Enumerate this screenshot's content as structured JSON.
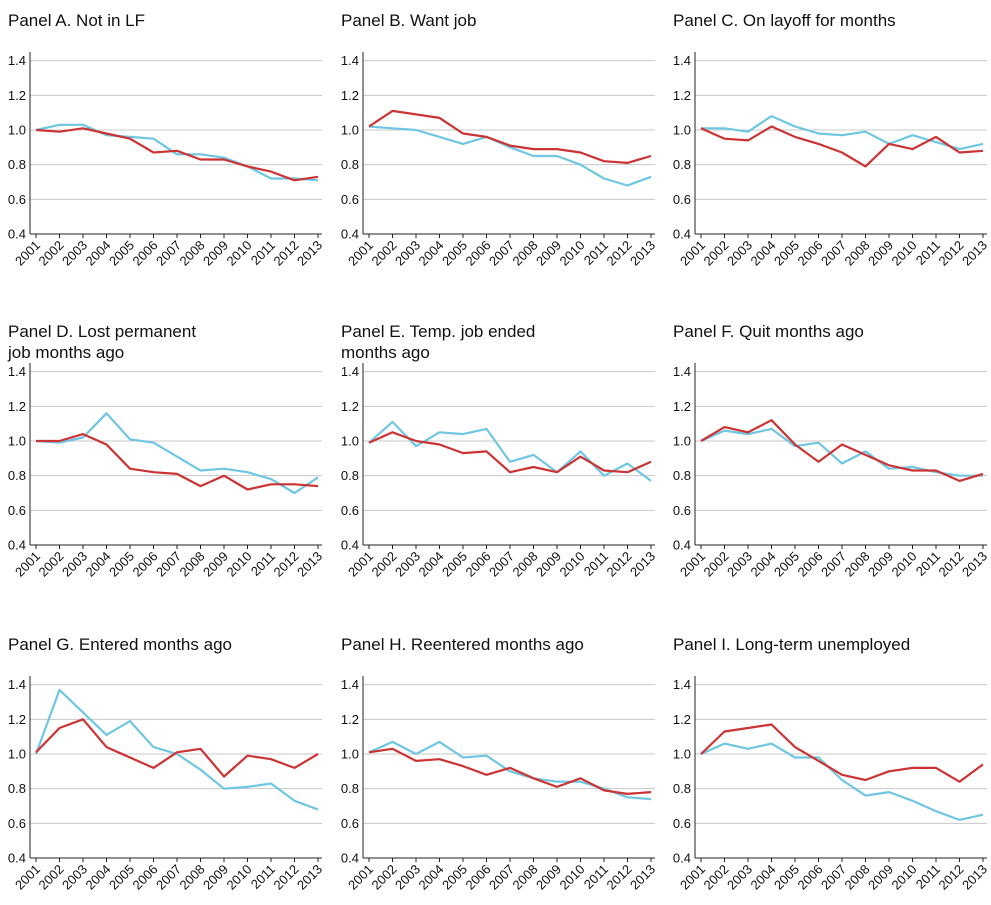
{
  "chart_data": [
    {
      "type": "line",
      "title": [
        "Panel A. Not in LF"
      ],
      "categories": [
        "2001",
        "2002",
        "2003",
        "2004",
        "2005",
        "2006",
        "2007",
        "2008",
        "2009",
        "2010",
        "2011",
        "2012",
        "2013"
      ],
      "ylim": [
        0.4,
        1.45
      ],
      "yticks": [
        0.4,
        0.6,
        0.8,
        {
          "value": 1,
          "label": "1.0"
        },
        1.2,
        1.4
      ],
      "grid": true,
      "series": [
        {
          "color": "#6fc6e2",
          "values": [
            1.0,
            1.03,
            1.03,
            0.97,
            0.96,
            0.95,
            0.86,
            0.86,
            0.84,
            0.79,
            0.72,
            0.72,
            0.71
          ]
        },
        {
          "color": "#cc3333",
          "values": [
            1.0,
            0.99,
            1.01,
            0.98,
            0.95,
            0.87,
            0.88,
            0.83,
            0.83,
            0.79,
            0.76,
            0.71,
            0.73
          ]
        }
      ]
    },
    {
      "type": "line",
      "title": [
        "Panel B. Want job"
      ],
      "categories": [
        "2001",
        "2002",
        "2003",
        "2004",
        "2005",
        "2006",
        "2007",
        "2008",
        "2009",
        "2010",
        "2011",
        "2012",
        "2013"
      ],
      "ylim": [
        0.4,
        1.45
      ],
      "yticks": [
        0.4,
        0.6,
        0.8,
        {
          "value": 1,
          "label": "1.0"
        },
        1.2,
        1.4
      ],
      "grid": true,
      "series": [
        {
          "color": "#6fc6e2",
          "values": [
            1.02,
            1.01,
            1.0,
            0.96,
            0.92,
            0.96,
            0.9,
            0.85,
            0.85,
            0.8,
            0.72,
            0.68,
            0.73
          ]
        },
        {
          "color": "#cc3333",
          "values": [
            1.02,
            1.11,
            1.09,
            1.07,
            0.98,
            0.96,
            0.91,
            0.89,
            0.89,
            0.87,
            0.82,
            0.81,
            0.85
          ]
        }
      ]
    },
    {
      "type": "line",
      "title": [
        "Panel C. On layoff for months"
      ],
      "categories": [
        "2001",
        "2002",
        "2003",
        "2004",
        "2005",
        "2006",
        "2007",
        "2008",
        "2009",
        "2010",
        "2011",
        "2012",
        "2013"
      ],
      "ylim": [
        0.4,
        1.45
      ],
      "yticks": [
        0.4,
        0.6,
        0.8,
        {
          "value": 1,
          "label": "1.0"
        },
        1.2,
        1.4
      ],
      "grid": true,
      "series": [
        {
          "color": "#6fc6e2",
          "values": [
            1.01,
            1.01,
            0.99,
            1.08,
            1.02,
            0.98,
            0.97,
            0.99,
            0.92,
            0.97,
            0.93,
            0.89,
            0.92
          ]
        },
        {
          "color": "#cc3333",
          "values": [
            1.01,
            0.95,
            0.94,
            1.02,
            0.96,
            0.92,
            0.87,
            0.79,
            0.92,
            0.89,
            0.96,
            0.87,
            0.88
          ]
        }
      ]
    },
    {
      "type": "line",
      "title": [
        "Panel D. Lost permanent",
        "job months ago"
      ],
      "categories": [
        "2001",
        "2002",
        "2003",
        "2004",
        "2005",
        "2006",
        "2007",
        "2008",
        "2009",
        "2010",
        "2011",
        "2012",
        "2013"
      ],
      "ylim": [
        0.4,
        1.45
      ],
      "yticks": [
        0.4,
        0.6,
        0.8,
        {
          "value": 1,
          "label": "1.0"
        },
        1.2,
        1.4
      ],
      "grid": true,
      "series": [
        {
          "color": "#6fc6e2",
          "values": [
            1.0,
            0.99,
            1.02,
            1.16,
            1.01,
            0.99,
            0.91,
            0.83,
            0.84,
            0.82,
            0.78,
            0.7,
            0.79
          ]
        },
        {
          "color": "#cc3333",
          "values": [
            1.0,
            1.0,
            1.04,
            0.98,
            0.84,
            0.82,
            0.81,
            0.74,
            0.8,
            0.72,
            0.75,
            0.75,
            0.74
          ]
        }
      ]
    },
    {
      "type": "line",
      "title": [
        "Panel E. Temp. job ended",
        "months ago"
      ],
      "categories": [
        "2001",
        "2002",
        "2003",
        "2004",
        "2005",
        "2006",
        "2007",
        "2008",
        "2009",
        "2010",
        "2011",
        "2012",
        "2013"
      ],
      "ylim": [
        0.4,
        1.45
      ],
      "yticks": [
        0.4,
        0.6,
        0.8,
        {
          "value": 1,
          "label": "1.0"
        },
        1.2,
        1.4
      ],
      "grid": true,
      "series": [
        {
          "color": "#6fc6e2",
          "values": [
            0.99,
            1.11,
            0.97,
            1.05,
            1.04,
            1.07,
            0.88,
            0.92,
            0.82,
            0.94,
            0.8,
            0.87,
            0.77
          ]
        },
        {
          "color": "#cc3333",
          "values": [
            0.99,
            1.05,
            1.0,
            0.98,
            0.93,
            0.94,
            0.82,
            0.85,
            0.82,
            0.91,
            0.83,
            0.82,
            0.88
          ]
        }
      ]
    },
    {
      "type": "line",
      "title": [
        "Panel F. Quit months ago"
      ],
      "categories": [
        "2001",
        "2002",
        "2003",
        "2004",
        "2005",
        "2006",
        "2007",
        "2008",
        "2009",
        "2010",
        "2011",
        "2012",
        "2013"
      ],
      "ylim": [
        0.4,
        1.45
      ],
      "yticks": [
        0.4,
        0.6,
        0.8,
        {
          "value": 1,
          "label": "1.0"
        },
        1.2,
        1.4
      ],
      "grid": true,
      "series": [
        {
          "color": "#6fc6e2",
          "values": [
            1.0,
            1.06,
            1.04,
            1.07,
            0.97,
            0.99,
            0.87,
            0.94,
            0.84,
            0.85,
            0.82,
            0.8,
            0.8
          ]
        },
        {
          "color": "#cc3333",
          "values": [
            1.0,
            1.08,
            1.05,
            1.12,
            0.98,
            0.88,
            0.98,
            0.92,
            0.86,
            0.83,
            0.83,
            0.77,
            0.81
          ]
        }
      ]
    },
    {
      "type": "line",
      "title": [
        "Panel G. Entered months ago"
      ],
      "categories": [
        "2001",
        "2002",
        "2003",
        "2004",
        "2005",
        "2006",
        "2007",
        "2008",
        "2009",
        "2010",
        "2011",
        "2012",
        "2013"
      ],
      "ylim": [
        0.4,
        1.45
      ],
      "yticks": [
        0.4,
        0.6,
        0.8,
        {
          "value": 1,
          "label": "1.0"
        },
        1.2,
        1.4
      ],
      "grid": true,
      "series": [
        {
          "color": "#6fc6e2",
          "values": [
            1.0,
            1.37,
            1.24,
            1.11,
            1.19,
            1.04,
            1.0,
            0.91,
            0.8,
            0.81,
            0.83,
            0.73,
            0.68
          ]
        },
        {
          "color": "#cc3333",
          "values": [
            1.01,
            1.15,
            1.2,
            1.04,
            0.98,
            0.92,
            1.01,
            1.03,
            0.87,
            0.99,
            0.97,
            0.92,
            1.0
          ]
        }
      ]
    },
    {
      "type": "line",
      "title": [
        "Panel H. Reentered months ago"
      ],
      "categories": [
        "2001",
        "2002",
        "2003",
        "2004",
        "2005",
        "2006",
        "2007",
        "2008",
        "2009",
        "2010",
        "2011",
        "2012",
        "2013"
      ],
      "ylim": [
        0.4,
        1.45
      ],
      "yticks": [
        0.4,
        0.6,
        0.8,
        {
          "value": 1,
          "label": "1.0"
        },
        1.2,
        1.4
      ],
      "grid": true,
      "series": [
        {
          "color": "#6fc6e2",
          "values": [
            1.01,
            1.07,
            1.0,
            1.07,
            0.98,
            0.99,
            0.9,
            0.86,
            0.84,
            0.84,
            0.8,
            0.75,
            0.74
          ]
        },
        {
          "color": "#cc3333",
          "values": [
            1.01,
            1.03,
            0.96,
            0.97,
            0.93,
            0.88,
            0.92,
            0.86,
            0.81,
            0.86,
            0.79,
            0.77,
            0.78
          ]
        }
      ]
    },
    {
      "type": "line",
      "title": [
        "Panel I. Long-term unemployed"
      ],
      "categories": [
        "2001",
        "2002",
        "2003",
        "2004",
        "2005",
        "2006",
        "2007",
        "2008",
        "2009",
        "2010",
        "2011",
        "2012",
        "2013"
      ],
      "ylim": [
        0.4,
        1.45
      ],
      "yticks": [
        0.4,
        0.6,
        0.8,
        {
          "value": 1,
          "label": "1.0"
        },
        1.2,
        1.4
      ],
      "grid": true,
      "series": [
        {
          "color": "#6fc6e2",
          "values": [
            1.0,
            1.06,
            1.03,
            1.06,
            0.98,
            0.98,
            0.85,
            0.76,
            0.78,
            0.73,
            0.67,
            0.62,
            0.65
          ]
        },
        {
          "color": "#cc3333",
          "values": [
            1.0,
            1.13,
            1.15,
            1.17,
            1.04,
            0.96,
            0.88,
            0.85,
            0.9,
            0.92,
            0.92,
            0.84,
            0.94
          ]
        }
      ]
    }
  ]
}
